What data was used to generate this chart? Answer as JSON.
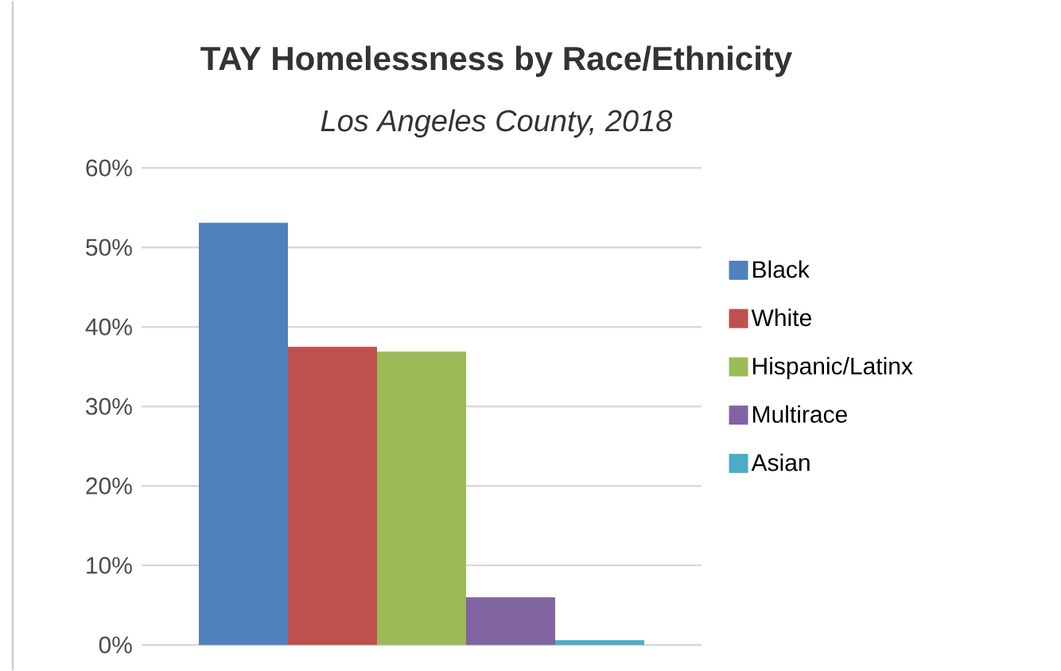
{
  "chart_data": {
    "type": "bar",
    "title": "TAY Homelessness by Race/Ethnicity",
    "subtitle": "*Los Angeles County, 2018*",
    "categories": [
      null
    ],
    "series": [
      {
        "name": "Black",
        "color": "#4f81bd",
        "values": [
          53.1
        ]
      },
      {
        "name": "White",
        "color": "#c0504d",
        "values": [
          37.5
        ]
      },
      {
        "name": "Hispanic/Latinx",
        "color": "#9bbb59",
        "values": [
          36.9
        ]
      },
      {
        "name": "Multirace",
        "color": "#8064a2",
        "values": [
          6.0
        ]
      },
      {
        "name": "Asian",
        "color": "#4bacc6",
        "values": [
          0.6
        ]
      }
    ],
    "ylim": [
      0,
      60
    ],
    "yticks": [
      {
        "value": 0,
        "label": "0%"
      },
      {
        "value": 10,
        "label": "10%"
      },
      {
        "value": 20,
        "label": "20%"
      },
      {
        "value": 30,
        "label": "30%"
      },
      {
        "value": 40,
        "label": "40%"
      },
      {
        "value": 50,
        "label": "50%"
      },
      {
        "value": 60,
        "label": "60%"
      }
    ],
    "grid": "y",
    "legend": "right"
  }
}
